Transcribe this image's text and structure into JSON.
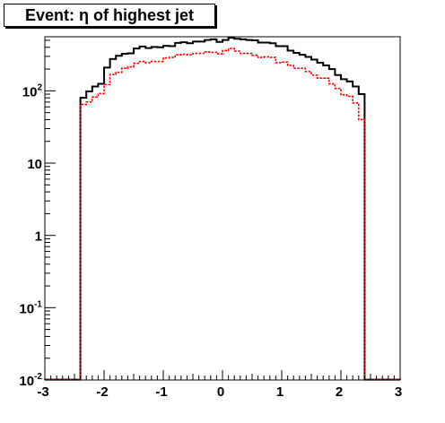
{
  "chart_data": {
    "type": "histogram",
    "title": "Event: η of highest jet",
    "xlabel": "",
    "ylabel": "",
    "xlim": [
      -3,
      3
    ],
    "ylim": [
      0.01,
      560
    ],
    "ylog": true,
    "grid": false,
    "legend": "none",
    "bin_edges": [
      -3.0,
      -2.4,
      -2.3,
      -2.2,
      -2.1,
      -2.0,
      -1.9,
      -1.8,
      -1.7,
      -1.6,
      -1.5,
      -1.4,
      -1.3,
      -1.2,
      -1.1,
      -1.0,
      -0.9,
      -0.8,
      -0.7,
      -0.6,
      -0.5,
      -0.4,
      -0.3,
      -0.2,
      -0.1,
      0.0,
      0.1,
      0.2,
      0.3,
      0.4,
      0.5,
      0.6,
      0.7,
      0.8,
      0.9,
      1.0,
      1.1,
      1.2,
      1.3,
      1.4,
      1.5,
      1.6,
      1.7,
      1.8,
      1.9,
      2.0,
      2.1,
      2.2,
      2.3,
      2.4,
      3.0
    ],
    "x_ticks": [
      {
        "value": -3,
        "label": "-3"
      },
      {
        "value": -2,
        "label": "-2"
      },
      {
        "value": -1,
        "label": "-1"
      },
      {
        "value": 0,
        "label": "0"
      },
      {
        "value": 1,
        "label": "1"
      },
      {
        "value": 2,
        "label": "2"
      },
      {
        "value": 3,
        "label": "3"
      }
    ],
    "y_ticks": [
      {
        "value": 0.01,
        "base": "10",
        "exp": "-2"
      },
      {
        "value": 0.1,
        "base": "10",
        "exp": "-1"
      },
      {
        "value": 1,
        "base": "1",
        "exp": ""
      },
      {
        "value": 10,
        "base": "10",
        "exp": ""
      },
      {
        "value": 100,
        "base": "10",
        "exp": "2"
      }
    ],
    "series": [
      {
        "color": "#000000",
        "style": "solid",
        "values": [
          0.0101,
          80,
          98,
          115,
          125,
          210,
          275,
          305,
          325,
          330,
          385,
          410,
          390,
          405,
          400,
          420,
          415,
          460,
          470,
          455,
          480,
          480,
          505,
          515,
          475,
          505,
          540,
          525,
          515,
          505,
          500,
          465,
          465,
          455,
          415,
          415,
          360,
          335,
          315,
          295,
          270,
          245,
          225,
          200,
          165,
          145,
          135,
          115,
          90,
          0.0101
        ]
      },
      {
        "color": "#ff0000",
        "style": "dashed",
        "values": [
          0.0101,
          65,
          70,
          82,
          92,
          122,
          168,
          180,
          205,
          215,
          240,
          255,
          245,
          255,
          255,
          285,
          290,
          315,
          320,
          315,
          330,
          330,
          345,
          340,
          325,
          360,
          385,
          355,
          330,
          330,
          310,
          290,
          295,
          290,
          245,
          250,
          225,
          205,
          205,
          185,
          165,
          150,
          150,
          125,
          108,
          88,
          84,
          68,
          40,
          0.0101
        ]
      }
    ]
  }
}
